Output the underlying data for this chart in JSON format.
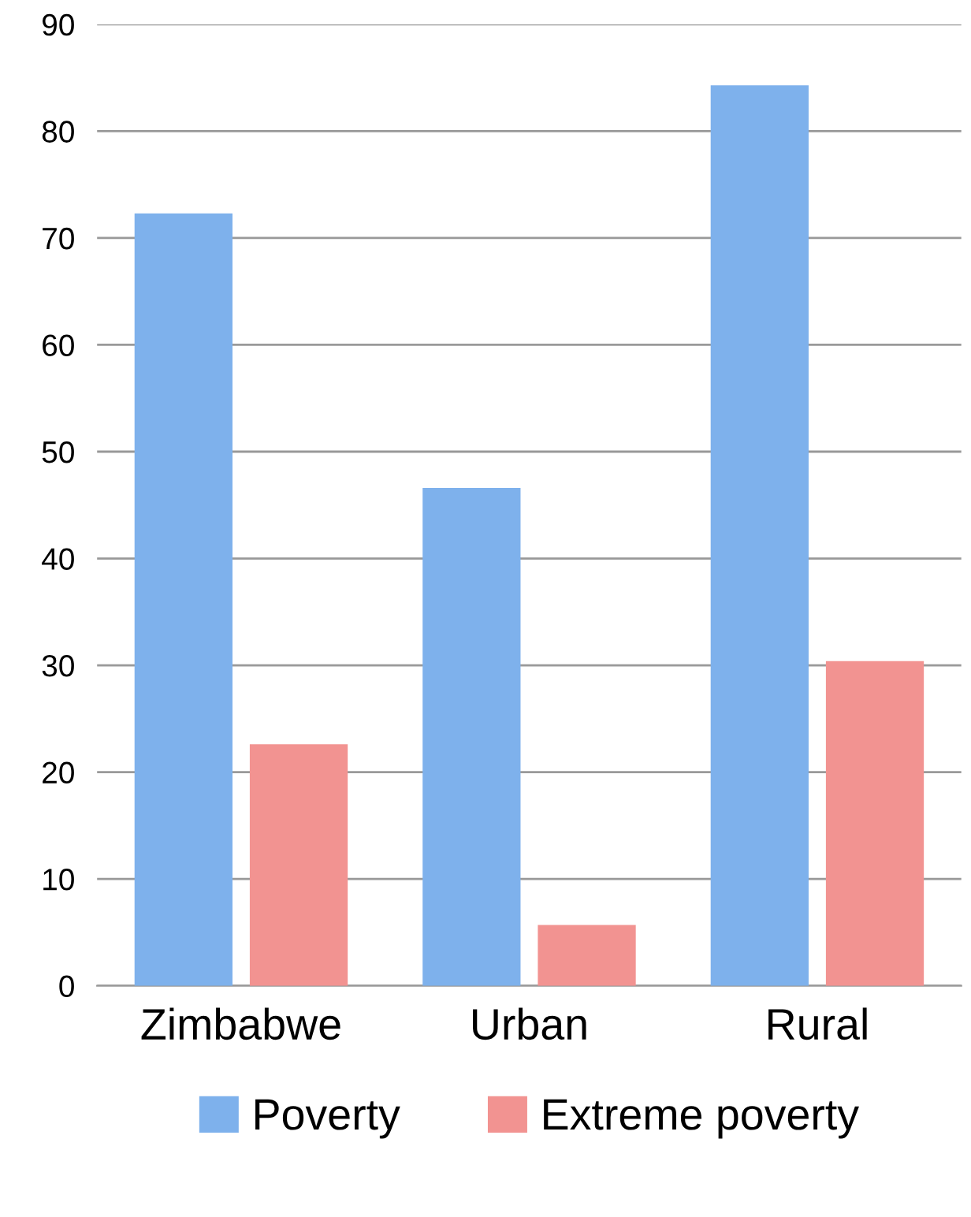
{
  "chart_data": {
    "type": "bar",
    "categories": [
      "Zimbabwe",
      "Urban",
      "Rural"
    ],
    "series": [
      {
        "name": "Poverty",
        "color": "#7eb1ec",
        "values": [
          72.3,
          46.6,
          84.3
        ]
      },
      {
        "name": "Extreme poverty",
        "color": "#f29391",
        "values": [
          22.6,
          5.7,
          30.4
        ]
      }
    ],
    "ylim": [
      0,
      90
    ],
    "yticks": [
      0,
      10,
      20,
      30,
      40,
      50,
      60,
      70,
      80,
      90
    ],
    "grid": "y",
    "legend": "bottom"
  }
}
